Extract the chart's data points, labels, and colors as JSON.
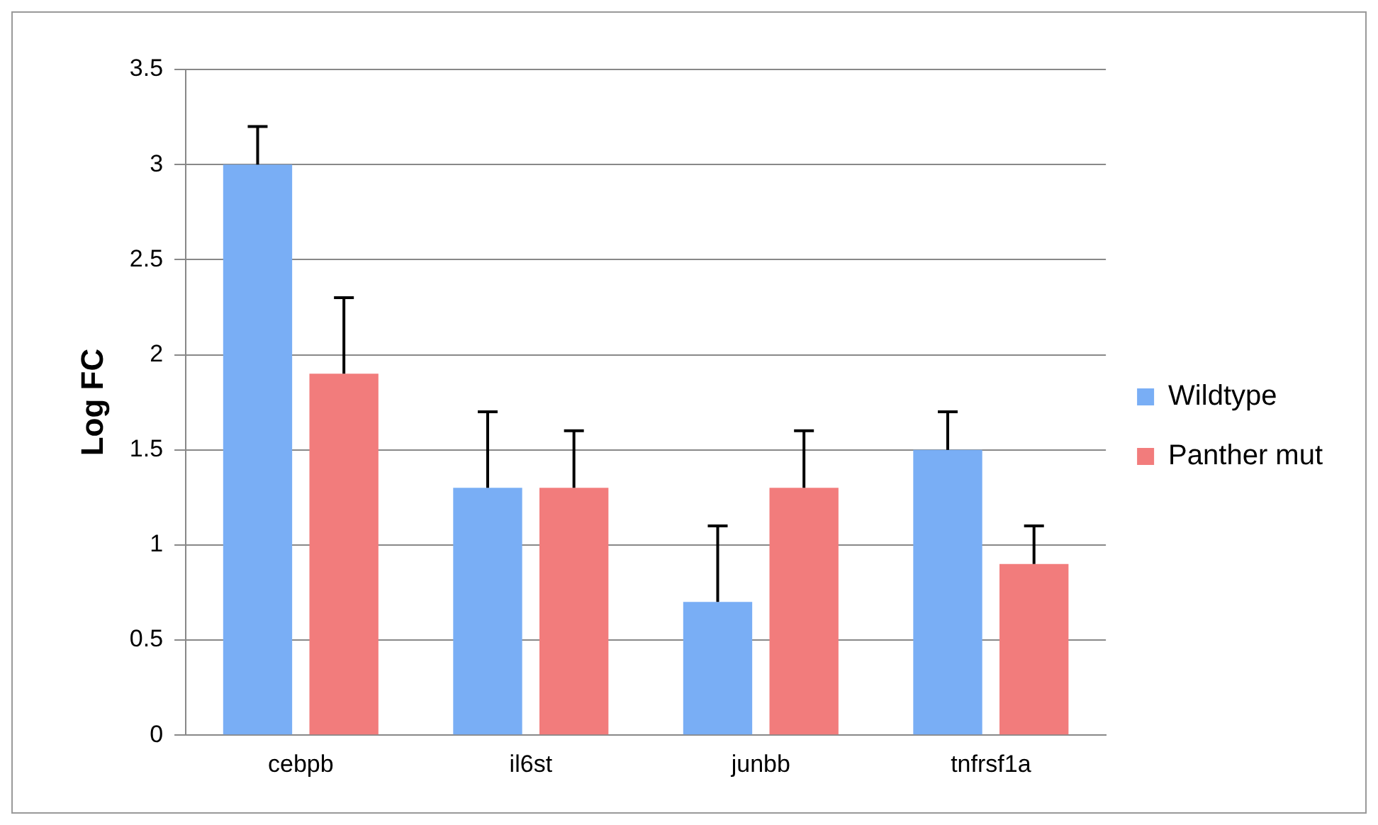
{
  "chart_data": {
    "type": "bar",
    "ylabel": "Log FC",
    "categories": [
      "cebpb",
      "il6st",
      "junbb",
      "tnfrsf1a"
    ],
    "series": [
      {
        "name": "Wildtype",
        "color": "#79aef5",
        "values": [
          3.0,
          1.3,
          0.7,
          1.5
        ],
        "errors": [
          [
            3.0,
            3.2
          ],
          [
            1.3,
            1.7
          ],
          [
            0.7,
            1.1
          ],
          [
            1.5,
            1.7
          ]
        ]
      },
      {
        "name": "Panther mut",
        "color": "#f27c7c",
        "values": [
          1.9,
          1.3,
          1.3,
          0.9
        ],
        "errors": [
          [
            1.9,
            2.3
          ],
          [
            1.3,
            1.6
          ],
          [
            1.3,
            1.6
          ],
          [
            0.9,
            1.1
          ]
        ]
      }
    ],
    "ylim": [
      0,
      3.5
    ],
    "yticks": [
      0,
      0.5,
      1,
      1.5,
      2,
      2.5,
      3,
      3.5
    ],
    "grid": "y",
    "legend": "right"
  }
}
